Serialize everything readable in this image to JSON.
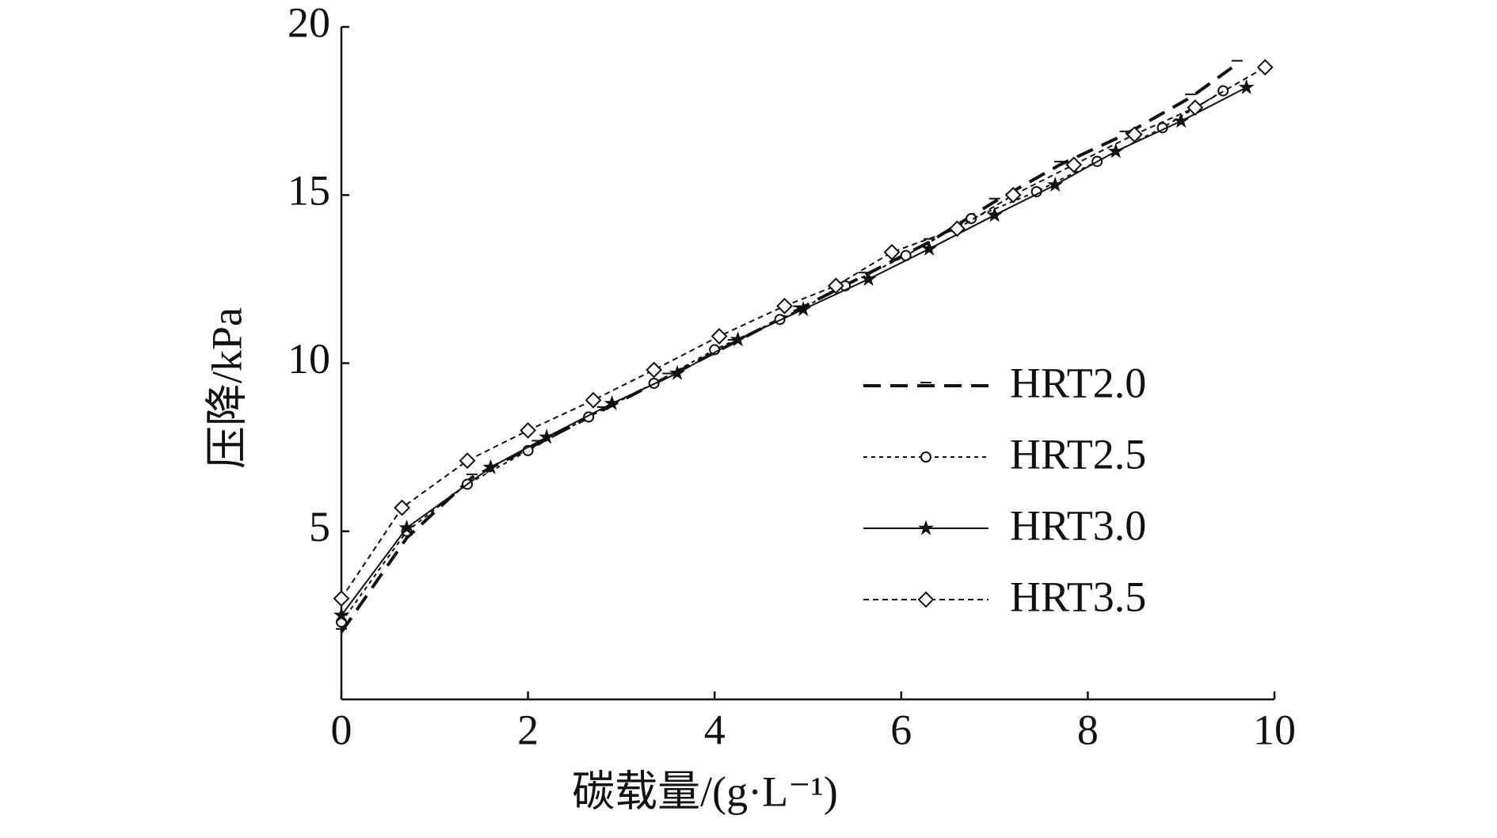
{
  "chart_data": {
    "type": "line",
    "x_label": "碳载量/(g·L⁻¹)",
    "y_label": "压降/kPa",
    "xlim": [
      0,
      10
    ],
    "xticks": [
      0,
      2,
      4,
      6,
      8,
      10
    ],
    "ylim": [
      0,
      20
    ],
    "yticks": [
      5,
      10,
      15,
      20
    ],
    "grid": false,
    "legend": "right",
    "series": [
      {
        "name": "HRT2.0",
        "color": "#111111",
        "dash": "22,12",
        "width": 4,
        "marker": "dash",
        "x": [
          0,
          0.7,
          1.4,
          2.1,
          2.8,
          3.5,
          4.2,
          4.9,
          5.6,
          6.3,
          7.0,
          7.7,
          8.4,
          9.1,
          9.6
        ],
        "values": [
          2.0,
          4.8,
          6.6,
          7.6,
          8.6,
          9.6,
          10.6,
          11.6,
          12.6,
          13.6,
          14.8,
          15.9,
          16.8,
          17.9,
          18.9
        ]
      },
      {
        "name": "HRT2.5",
        "color": "#111111",
        "dash": "5,5",
        "width": 2,
        "marker": "circle",
        "x": [
          0,
          0.7,
          1.35,
          2.0,
          2.65,
          3.35,
          4.0,
          4.7,
          5.4,
          6.05,
          6.75,
          7.45,
          8.1,
          8.8,
          9.45
        ],
        "values": [
          2.3,
          5.0,
          6.4,
          7.4,
          8.4,
          9.4,
          10.4,
          11.3,
          12.3,
          13.2,
          14.3,
          15.1,
          16.0,
          17.0,
          18.1
        ]
      },
      {
        "name": "HRT3.0",
        "color": "#111111",
        "dash": "none",
        "width": 2,
        "marker": "star",
        "x": [
          0,
          0.7,
          1.6,
          2.2,
          2.9,
          3.6,
          4.25,
          4.95,
          5.65,
          6.3,
          7.0,
          7.65,
          8.3,
          9.0,
          9.7
        ],
        "values": [
          2.5,
          5.1,
          6.9,
          7.8,
          8.8,
          9.7,
          10.7,
          11.6,
          12.5,
          13.4,
          14.4,
          15.3,
          16.3,
          17.2,
          18.2
        ]
      },
      {
        "name": "HRT3.5",
        "color": "#111111",
        "dash": "7,5",
        "width": 2,
        "marker": "diamond",
        "x": [
          0,
          0.65,
          1.35,
          2.0,
          2.7,
          3.35,
          4.05,
          4.75,
          5.3,
          5.9,
          6.6,
          7.2,
          7.85,
          8.5,
          9.15,
          9.9
        ],
        "values": [
          3.0,
          5.7,
          7.1,
          8.0,
          8.9,
          9.8,
          10.8,
          11.7,
          12.3,
          13.3,
          14.0,
          15.0,
          15.9,
          16.8,
          17.6,
          18.8
        ]
      }
    ]
  }
}
